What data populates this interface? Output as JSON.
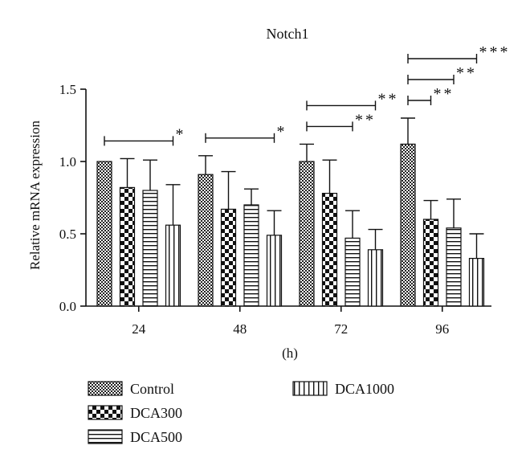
{
  "chart_data": {
    "type": "bar",
    "title": "Notch1",
    "xlabel": "(h)",
    "ylabel": "Relative mRNA expression",
    "ylim": [
      0,
      1.5
    ],
    "yticks": [
      0.0,
      0.5,
      1.0,
      1.5
    ],
    "ytick_labels": [
      "0.0",
      "0.5",
      "1.0",
      "1.5"
    ],
    "categories": [
      "24",
      "48",
      "72",
      "96"
    ],
    "series": [
      {
        "name": "Control",
        "pattern": "checker-fine",
        "values": [
          1.0,
          0.91,
          1.0,
          1.12
        ],
        "errors": [
          0.0,
          0.13,
          0.12,
          0.18
        ]
      },
      {
        "name": "DCA300",
        "pattern": "checker-coarse",
        "values": [
          0.82,
          0.67,
          0.78,
          0.6
        ],
        "errors": [
          0.2,
          0.26,
          0.23,
          0.13
        ]
      },
      {
        "name": "DCA500",
        "pattern": "horizontal-lines",
        "values": [
          0.8,
          0.7,
          0.47,
          0.54
        ],
        "errors": [
          0.21,
          0.11,
          0.19,
          0.2
        ]
      },
      {
        "name": "DCA1000",
        "pattern": "vertical-lines",
        "values": [
          0.56,
          0.49,
          0.39,
          0.33
        ],
        "errors": [
          0.28,
          0.17,
          0.14,
          0.17
        ]
      }
    ],
    "significance": [
      {
        "category": "24",
        "from_series": 0,
        "to_series": 3,
        "label": "*"
      },
      {
        "category": "48",
        "from_series": 0,
        "to_series": 3,
        "label": "*"
      },
      {
        "category": "72",
        "from_series": 0,
        "to_series": 2,
        "label": "**"
      },
      {
        "category": "72",
        "from_series": 0,
        "to_series": 3,
        "label": "**"
      },
      {
        "category": "96",
        "from_series": 0,
        "to_series": 1,
        "label": "**"
      },
      {
        "category": "96",
        "from_series": 0,
        "to_series": 2,
        "label": "**"
      },
      {
        "category": "96",
        "from_series": 0,
        "to_series": 3,
        "label": "***"
      }
    ],
    "grid": false,
    "legend_position": "bottom"
  }
}
